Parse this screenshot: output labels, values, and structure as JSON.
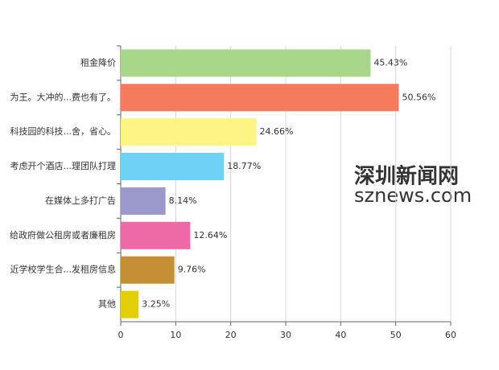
{
  "chart_data": {
    "type": "bar",
    "orientation": "horizontal",
    "categories": [
      "租金降价",
      "为王。大冲的...费也有了。",
      "科技园的科技...舍，省心。",
      "考虑开个酒店...理团队打理",
      "在媒体上多打广告",
      "给政府做公租房或者廉租房",
      "近学校学生合...发租房信息",
      "其他"
    ],
    "values": [
      45.43,
      50.56,
      24.66,
      18.77,
      8.14,
      12.64,
      9.76,
      3.25
    ],
    "value_labels": [
      "45.43%",
      "50.56%",
      "24.66%",
      "18.77%",
      "8.14%",
      "12.64%",
      "9.76%",
      "3.25%"
    ],
    "colors": [
      "#a9d78a",
      "#f47c5d",
      "#fdf484",
      "#6fd1f6",
      "#9b98cb",
      "#ee6aa7",
      "#c68f36",
      "#e2cf05"
    ],
    "xlim": [
      0,
      60
    ],
    "xticks": [
      0,
      10,
      20,
      30,
      40,
      50,
      60
    ],
    "grid": true,
    "watermark": [
      "深圳新闻网",
      "sznews.com"
    ]
  }
}
